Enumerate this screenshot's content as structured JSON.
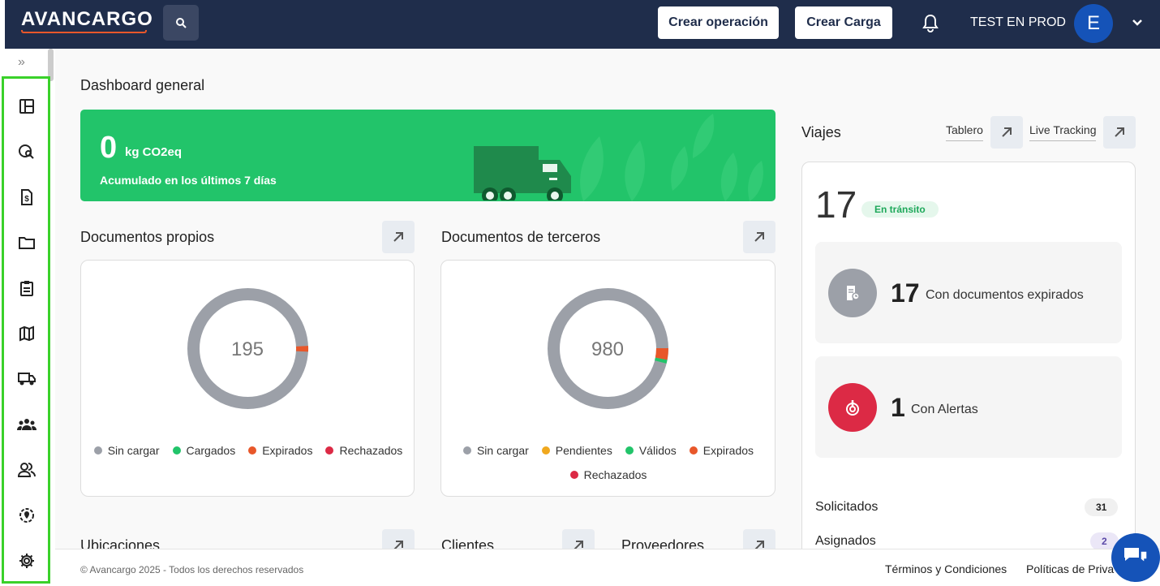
{
  "app": {
    "logo": "AVANCARGO"
  },
  "header": {
    "create_operation": "Crear operación",
    "create_load": "Crear Carga",
    "user_name": "TEST EN PROD",
    "avatar_letter": "E"
  },
  "sidebar": {
    "expand": "»"
  },
  "page": {
    "title": "Dashboard general"
  },
  "co2": {
    "value": "0",
    "unit": "kg CO2eq",
    "subtitle": "Acumulado en los últimos 7 días"
  },
  "own_docs": {
    "title": "Documentos propios",
    "total": "195",
    "legend": [
      "Sin cargar",
      "Cargados",
      "Expirados",
      "Rechazados"
    ],
    "legend_colors": [
      "#9ca0a8",
      "#22c46a",
      "#e8572a",
      "#dc2a45"
    ]
  },
  "third_docs": {
    "title": "Documentos de terceros",
    "total": "980",
    "legend": [
      "Sin cargar",
      "Pendientes",
      "Válidos",
      "Expirados",
      "Rechazados"
    ],
    "legend_colors": [
      "#9ca0a8",
      "#f0a81e",
      "#22c46a",
      "#e8572a",
      "#dc2a45"
    ]
  },
  "sections": {
    "locations": "Ubicaciones",
    "clients": "Clientes",
    "providers": "Proveedores"
  },
  "trips": {
    "title": "Viajes",
    "board_link": "Tablero",
    "tracking_link": "Live Tracking",
    "in_transit_count": "17",
    "in_transit_label": "En tránsito",
    "expired_docs_count": "17",
    "expired_docs_label": "Con documentos expirados",
    "alerts_count": "1",
    "alerts_label": "Con Alertas",
    "requested_label": "Solicitados",
    "requested_count": "31",
    "assigned_label": "Asignados",
    "assigned_count": "2"
  },
  "footer": {
    "copyright": "© Avancargo 2025 - Todos los derechos reservados",
    "terms": "Términos y Condiciones",
    "privacy": "Políticas de Priva"
  }
}
